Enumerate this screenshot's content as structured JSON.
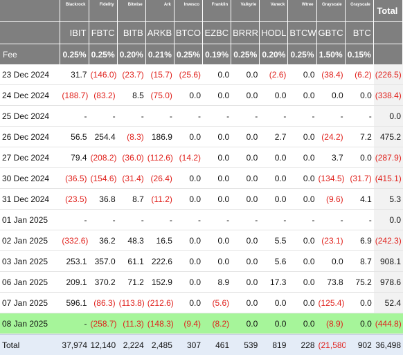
{
  "columns": [
    {
      "issuer": "Blackrock",
      "ticker": "IBIT",
      "fee": "0.25%"
    },
    {
      "issuer": "Fidelity",
      "ticker": "FBTC",
      "fee": "0.25%"
    },
    {
      "issuer": "Bitwise",
      "ticker": "BITB",
      "fee": "0.20%"
    },
    {
      "issuer": "Ark",
      "ticker": "ARKB",
      "fee": "0.21%"
    },
    {
      "issuer": "Invesco",
      "ticker": "BTCO",
      "fee": "0.25%"
    },
    {
      "issuer": "Franklin",
      "ticker": "EZBC",
      "fee": "0.19%"
    },
    {
      "issuer": "Valkyrie",
      "ticker": "BRRR",
      "fee": "0.25%"
    },
    {
      "issuer": "Vaneck",
      "ticker": "HODL",
      "fee": "0.20%"
    },
    {
      "issuer": "Wtree",
      "ticker": "BTCW",
      "fee": "0.25%"
    },
    {
      "issuer": "Grayscale",
      "ticker": "GBTC",
      "fee": "1.50%"
    },
    {
      "issuer": "Grayscale",
      "ticker": "BTC",
      "fee": "0.15%"
    }
  ],
  "total_header": "Total",
  "fee_label": "Fee",
  "rows": [
    {
      "date": "23 Dec 2024",
      "values": [
        "31.7",
        "(146.0)",
        "(23.7)",
        "(15.7)",
        "(25.6)",
        "0.0",
        "0.0",
        "(2.6)",
        "0.0",
        "(38.4)",
        "(6.2)"
      ],
      "total": "(226.5)"
    },
    {
      "date": "24 Dec 2024",
      "values": [
        "(188.7)",
        "(83.2)",
        "8.5",
        "(75.0)",
        "0.0",
        "0.0",
        "0.0",
        "0.0",
        "0.0",
        "0.0",
        "0.0"
      ],
      "total": "(338.4)"
    },
    {
      "date": "25 Dec 2024",
      "values": [
        "-",
        "-",
        "-",
        "-",
        "-",
        "-",
        "-",
        "-",
        "-",
        "-",
        "-"
      ],
      "total": "0.0"
    },
    {
      "date": "26 Dec 2024",
      "values": [
        "56.5",
        "254.4",
        "(8.3)",
        "186.9",
        "0.0",
        "0.0",
        "0.0",
        "2.7",
        "0.0",
        "(24.2)",
        "7.2"
      ],
      "total": "475.2"
    },
    {
      "date": "27 Dec 2024",
      "values": [
        "79.4",
        "(208.2)",
        "(36.0)",
        "(112.6)",
        "(14.2)",
        "0.0",
        "0.0",
        "0.0",
        "0.0",
        "3.7",
        "0.0"
      ],
      "total": "(287.9)"
    },
    {
      "date": "30 Dec 2024",
      "values": [
        "(36.5)",
        "(154.6)",
        "(31.4)",
        "(26.4)",
        "0.0",
        "0.0",
        "0.0",
        "0.0",
        "0.0",
        "(134.5)",
        "(31.7)"
      ],
      "total": "(415.1)"
    },
    {
      "date": "31 Dec 2024",
      "values": [
        "(23.5)",
        "36.8",
        "8.7",
        "(11.2)",
        "0.0",
        "0.0",
        "0.0",
        "0.0",
        "0.0",
        "(9.6)",
        "4.1"
      ],
      "total": "5.3"
    },
    {
      "date": "01 Jan 2025",
      "values": [
        "-",
        "-",
        "-",
        "-",
        "-",
        "-",
        "-",
        "-",
        "-",
        "-",
        "-"
      ],
      "total": "0.0"
    },
    {
      "date": "02 Jan 2025",
      "values": [
        "(332.6)",
        "36.2",
        "48.3",
        "16.5",
        "0.0",
        "0.0",
        "0.0",
        "5.5",
        "0.0",
        "(23.1)",
        "6.9"
      ],
      "total": "(242.3)"
    },
    {
      "date": "03 Jan 2025",
      "values": [
        "253.1",
        "357.0",
        "61.1",
        "222.6",
        "0.0",
        "0.0",
        "0.0",
        "5.6",
        "0.0",
        "0.0",
        "8.7"
      ],
      "total": "908.1"
    },
    {
      "date": "06 Jan 2025",
      "values": [
        "209.1",
        "370.2",
        "71.2",
        "152.9",
        "0.0",
        "8.9",
        "0.0",
        "17.3",
        "0.0",
        "73.8",
        "75.2"
      ],
      "total": "978.6"
    },
    {
      "date": "07 Jan 2025",
      "values": [
        "596.1",
        "(86.3)",
        "(113.8)",
        "(212.6)",
        "0.0",
        "(5.6)",
        "0.0",
        "0.0",
        "0.0",
        "(125.4)",
        "0.0"
      ],
      "total": "52.4"
    },
    {
      "date": "08 Jan 2025",
      "values": [
        "-",
        "(258.7)",
        "(11.3)",
        "(148.3)",
        "(9.4)",
        "(8.2)",
        "0.0",
        "0.0",
        "0.0",
        "(8.9)",
        "0.0"
      ],
      "total": "(444.8)",
      "highlight": true
    }
  ],
  "totals": {
    "label": "Total",
    "values": [
      "37,974",
      "12,140",
      "2,224",
      "2,485",
      "307",
      "461",
      "539",
      "819",
      "228",
      "(21,580)",
      "902"
    ],
    "total": "36,498"
  },
  "colors": {
    "header_bg": "#7f7f7f",
    "negative": "#e0201b",
    "highlight_row": "#a6f59a",
    "totals_row": "#e4ecf7"
  }
}
